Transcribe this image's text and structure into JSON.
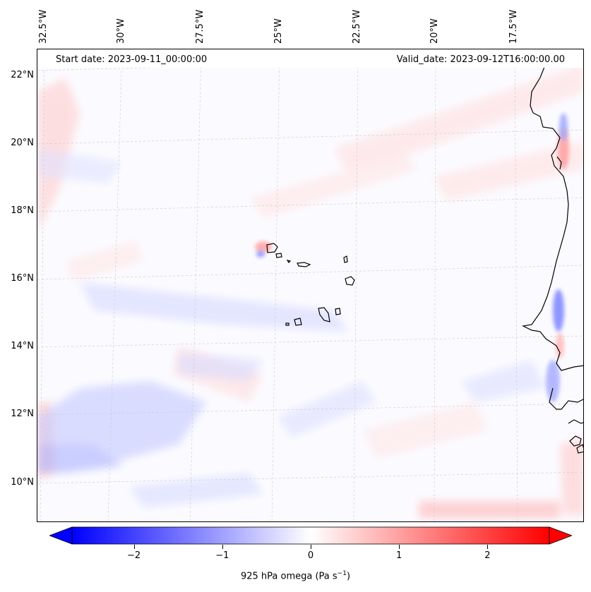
{
  "header": {
    "start_date": "Start date: 2023-09-11_00:00:00",
    "valid_date": "Valid_date: 2023-09-12T16:00:00.00"
  },
  "axes": {
    "longitude_ticks": [
      "32.5°W",
      "30°W",
      "27.5°W",
      "25°W",
      "22.5°W",
      "20°W",
      "17.5°W"
    ],
    "latitude_ticks": [
      "22°N",
      "20°N",
      "18°N",
      "16°N",
      "14°N",
      "12°N",
      "10°N"
    ]
  },
  "colorbar": {
    "label_prefix": "925 hPa omega (Pa s",
    "label_exp": "−1",
    "label_suffix": ")",
    "ticks": [
      "−2",
      "−1",
      "0",
      "1",
      "2"
    ],
    "min": -2.7,
    "max": 2.7,
    "low_color": "#0000ff",
    "mid_color": "#ffffff",
    "high_color": "#ff0000"
  },
  "map": {
    "field": "925 hPa omega",
    "region": "Cape Verde / West African coast"
  }
}
